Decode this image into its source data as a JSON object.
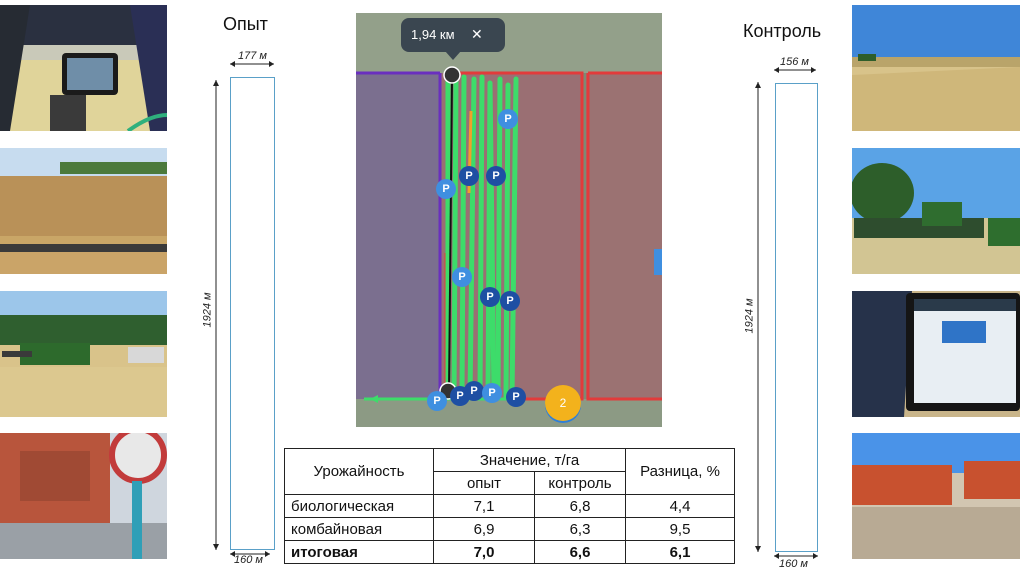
{
  "labels": {
    "experiment": "Опыт",
    "control": "Контроль"
  },
  "strips": {
    "experiment": {
      "top_width": "177 м",
      "bottom_width": "160 м",
      "length": "1924 м"
    },
    "control": {
      "top_width": "156 м",
      "bottom_width": "160 м",
      "length": "1924 м"
    }
  },
  "map": {
    "distance": "1,94 км",
    "close_symbol": "✕",
    "marker_letter": "P",
    "cluster_count": "2"
  },
  "table": {
    "header_crop": "Урожайность",
    "header_value": "Значение, т/га",
    "header_exp": "опыт",
    "header_ctrl": "контроль",
    "header_diff": "Разница, %",
    "rows": [
      {
        "name": "биологическая",
        "exp": "7,1",
        "ctrl": "6,8",
        "diff": "4,4"
      },
      {
        "name": "комбайновая",
        "exp": "6,9",
        "ctrl": "6,3",
        "diff": "9,5"
      },
      {
        "name": "итоговая",
        "exp": "7,0",
        "ctrl": "6,6",
        "diff": "6,1"
      }
    ]
  },
  "colors": {
    "track": "#3ddc6a",
    "field_red": "#e23b3b",
    "field_purple": "#6a2fbf",
    "strip_border": "#5aa0c8"
  }
}
